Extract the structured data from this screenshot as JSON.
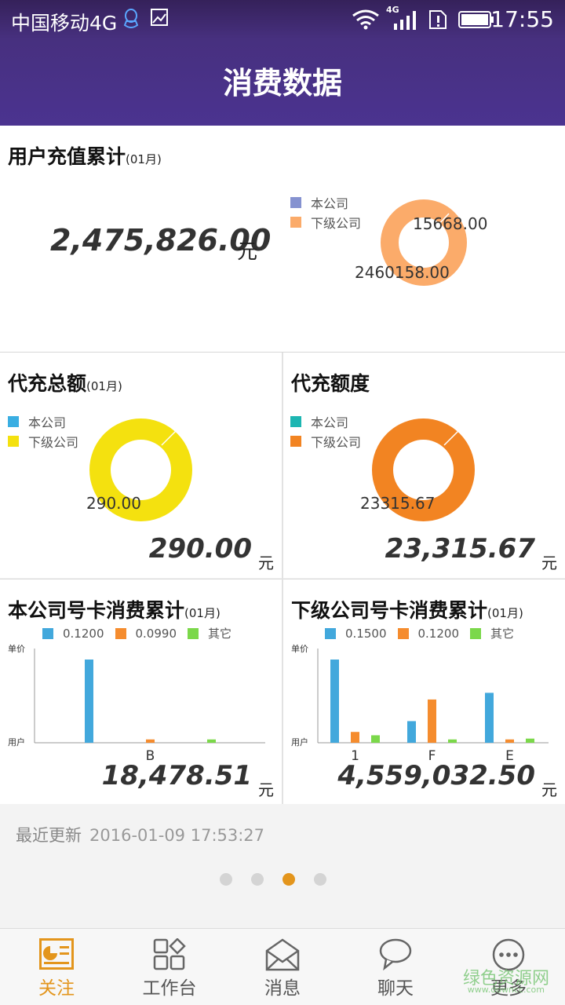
{
  "status_bar": {
    "carrier": "中国移动4G",
    "network": "4G",
    "time": "17:55",
    "icons": [
      "qq-icon",
      "image-icon",
      "wifi-icon",
      "signal-icon",
      "sim-alert-icon",
      "battery-icon"
    ]
  },
  "header": {
    "title": "消费数据"
  },
  "recharge": {
    "title": "用户充值累计",
    "period": "(01月)",
    "total": "2,475,826.00",
    "unit": "元",
    "legend": [
      {
        "label": "本公司",
        "color": "#8592d0"
      },
      {
        "label": "下级公司",
        "color": "#fbab6a"
      }
    ],
    "ring_labels": [
      "15668.00",
      "2460158.00"
    ]
  },
  "proxy_total": {
    "title": "代充总额",
    "period": "(01月)",
    "total": "290.00",
    "unit": "元",
    "legend": [
      {
        "label": "本公司",
        "color": "#3aaee2"
      },
      {
        "label": "下级公司",
        "color": "#f4e10f"
      }
    ],
    "ring_label": "290.00"
  },
  "proxy_quota": {
    "title": "代充额度",
    "total": "23,315.67",
    "unit": "元",
    "legend": [
      {
        "label": "本公司",
        "color": "#1db6b2"
      },
      {
        "label": "下级公司",
        "color": "#f28422"
      }
    ],
    "ring_label": "23315.67"
  },
  "own_cards": {
    "title": "本公司号卡消费累计",
    "period": "(01月)",
    "legend": [
      {
        "label": "0.1200",
        "color": "#42a8dc"
      },
      {
        "label": "0.0990",
        "color": "#f58c2e"
      },
      {
        "label": "其它",
        "color": "#7bd84a"
      }
    ],
    "axis_top": "单价",
    "axis_bottom": "用户",
    "total": "18,478.51",
    "unit": "元"
  },
  "sub_cards": {
    "title": "下级公司号卡消费累计",
    "period": "(01月)",
    "legend": [
      {
        "label": "0.1500",
        "color": "#42a8dc"
      },
      {
        "label": "0.1200",
        "color": "#f58c2e"
      },
      {
        "label": "其它",
        "color": "#7bd84a"
      }
    ],
    "axis_top": "单价",
    "axis_bottom": "用户",
    "total": "4,559,032.50",
    "unit": "元"
  },
  "chart_data": [
    {
      "type": "pie",
      "title": "用户充值累计",
      "labels": [
        "本公司",
        "下级公司"
      ],
      "values": [
        15668.0,
        2460158.0
      ],
      "colors": [
        "#8592d0",
        "#fbab6a"
      ]
    },
    {
      "type": "pie",
      "title": "代充总额",
      "labels": [
        "本公司",
        "下级公司"
      ],
      "values": [
        0,
        290.0
      ],
      "colors": [
        "#3aaee2",
        "#f4e10f"
      ]
    },
    {
      "type": "pie",
      "title": "代充额度",
      "labels": [
        "本公司",
        "下级公司"
      ],
      "values": [
        0,
        23315.67
      ],
      "colors": [
        "#1db6b2",
        "#f28422"
      ]
    },
    {
      "type": "bar",
      "title": "本公司号卡消费累计",
      "categories": [
        "B"
      ],
      "series": [
        {
          "name": "0.1200",
          "values": [
            100
          ],
          "color": "#42a8dc"
        },
        {
          "name": "0.0990",
          "values": [
            4
          ],
          "color": "#f58c2e"
        },
        {
          "name": "其它",
          "values": [
            4
          ],
          "color": "#7bd84a"
        }
      ],
      "ylim": [
        0,
        100
      ],
      "xlabel": "用户",
      "ylabel": "单价"
    },
    {
      "type": "bar",
      "title": "下级公司号卡消费累计",
      "categories": [
        "1",
        "F",
        "E"
      ],
      "series": [
        {
          "name": "0.1500",
          "values": [
            100,
            26,
            60
          ],
          "color": "#42a8dc"
        },
        {
          "name": "0.1200",
          "values": [
            13,
            52,
            4
          ],
          "color": "#f58c2e"
        },
        {
          "name": "其它",
          "values": [
            9,
            4,
            5
          ],
          "color": "#7bd84a"
        }
      ],
      "ylim": [
        0,
        100
      ],
      "xlabel": "用户",
      "ylabel": "单价"
    }
  ],
  "footer": {
    "updated_label": "最近更新",
    "updated_time": "2016-01-09 17:53:27",
    "pages": 4,
    "active_page": 3
  },
  "tabs": [
    {
      "label": "关注",
      "icon": "follow-icon",
      "active": true
    },
    {
      "label": "工作台",
      "icon": "workbench-icon",
      "active": false
    },
    {
      "label": "消息",
      "icon": "message-icon",
      "active": false
    },
    {
      "label": "聊天",
      "icon": "chat-icon",
      "active": false
    },
    {
      "label": "更多",
      "icon": "more-icon",
      "active": false
    }
  ],
  "watermark": {
    "text": "绿色资源网",
    "sub": "www.downcc.com"
  },
  "colors": {
    "header": "#4b3390",
    "accent": "#e3951c",
    "divider": "#d8d8d8"
  }
}
